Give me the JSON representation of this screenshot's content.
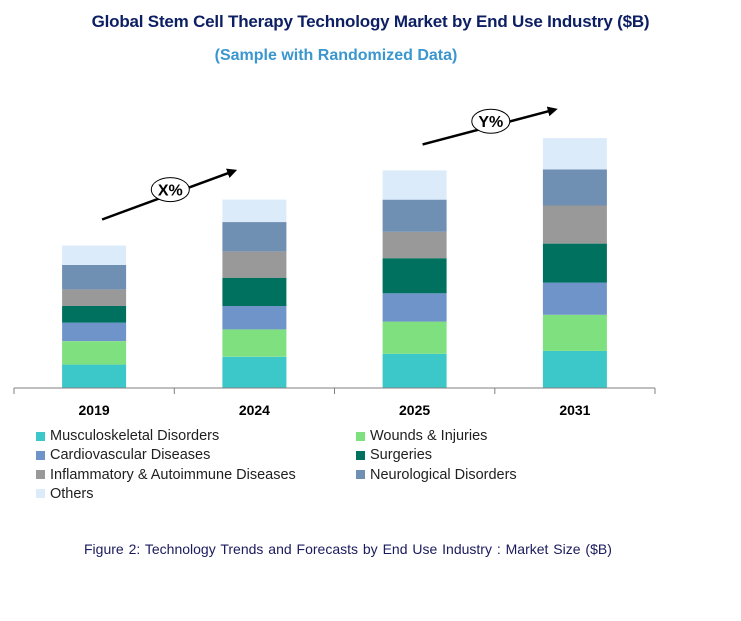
{
  "title": "Global Stem Cell Therapy Technology Market by End Use Industry ($B)",
  "subtitle": "(Sample with Randomized Data)",
  "caption": "Figure 2: Technology  Trends  and Forecasts by  End Use Industry   : Market Size ($B)",
  "annotations": [
    {
      "label": "X%",
      "from_year": "2019",
      "to_year": "2024"
    },
    {
      "label": "Y%",
      "from_year": "2025",
      "to_year": "2031"
    }
  ],
  "colors": {
    "title": "#0d1f63",
    "subtitle": "#3a96cf",
    "axis": "#7f7f7f",
    "arrow": "#000000"
  },
  "chart_data": {
    "type": "bar",
    "stacked": true,
    "title": "Global Stem Cell Therapy Technology Market by End Use Industry ($B)",
    "xlabel": "",
    "ylabel": "",
    "categories": [
      "2019",
      "2024",
      "2025",
      "2031"
    ],
    "ylim": [
      0,
      250
    ],
    "series": [
      {
        "name": "Musculoskeletal Disorders",
        "color": "#3cc8c8",
        "values": [
          24,
          32,
          35,
          38
        ]
      },
      {
        "name": "Wounds & Injuries",
        "color": "#7ee07e",
        "values": [
          24,
          28,
          33,
          37
        ]
      },
      {
        "name": "Cardiovascular Diseases",
        "color": "#6f94c9",
        "values": [
          19,
          24,
          29,
          33
        ]
      },
      {
        "name": "Surgeries",
        "color": "#00705f",
        "values": [
          17,
          29,
          36,
          40
        ]
      },
      {
        "name": "Inflammatory & Autoimmune Diseases",
        "color": "#999999",
        "values": [
          17,
          27,
          27,
          39
        ]
      },
      {
        "name": "Neurological Disorders",
        "color": "#6f8fb3",
        "values": [
          25,
          30,
          33,
          37
        ]
      },
      {
        "name": "Others",
        "color": "#dcebfa",
        "values": [
          20,
          23,
          30,
          32
        ]
      }
    ]
  }
}
